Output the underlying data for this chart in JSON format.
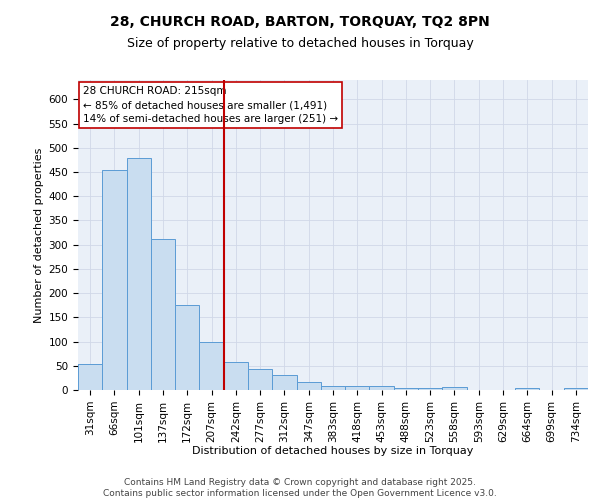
{
  "title_line1": "28, CHURCH ROAD, BARTON, TORQUAY, TQ2 8PN",
  "title_line2": "Size of property relative to detached houses in Torquay",
  "xlabel": "Distribution of detached houses by size in Torquay",
  "ylabel": "Number of detached properties",
  "categories": [
    "31sqm",
    "66sqm",
    "101sqm",
    "137sqm",
    "172sqm",
    "207sqm",
    "242sqm",
    "277sqm",
    "312sqm",
    "347sqm",
    "383sqm",
    "418sqm",
    "453sqm",
    "488sqm",
    "523sqm",
    "558sqm",
    "593sqm",
    "629sqm",
    "664sqm",
    "699sqm",
    "734sqm"
  ],
  "values": [
    53,
    455,
    480,
    311,
    176,
    100,
    57,
    43,
    32,
    16,
    9,
    9,
    9,
    5,
    5,
    6,
    1,
    1,
    4,
    1,
    4
  ],
  "bar_color": "#c9ddf0",
  "bar_edge_color": "#5b9bd5",
  "vline_x_index": 5.5,
  "vline_color": "#c00000",
  "annotation_text": "28 CHURCH ROAD: 215sqm\n← 85% of detached houses are smaller (1,491)\n14% of semi-detached houses are larger (251) →",
  "annotation_box_color": "white",
  "annotation_box_edge_color": "#c00000",
  "ylim": [
    0,
    640
  ],
  "yticks": [
    0,
    50,
    100,
    150,
    200,
    250,
    300,
    350,
    400,
    450,
    500,
    550,
    600
  ],
  "grid_color": "#d0d8e8",
  "background_color": "#eaf0f8",
  "footnote": "Contains HM Land Registry data © Crown copyright and database right 2025.\nContains public sector information licensed under the Open Government Licence v3.0.",
  "title_fontsize": 10,
  "subtitle_fontsize": 9,
  "axis_label_fontsize": 8,
  "tick_fontsize": 7.5,
  "annotation_fontsize": 7.5,
  "footnote_fontsize": 6.5
}
